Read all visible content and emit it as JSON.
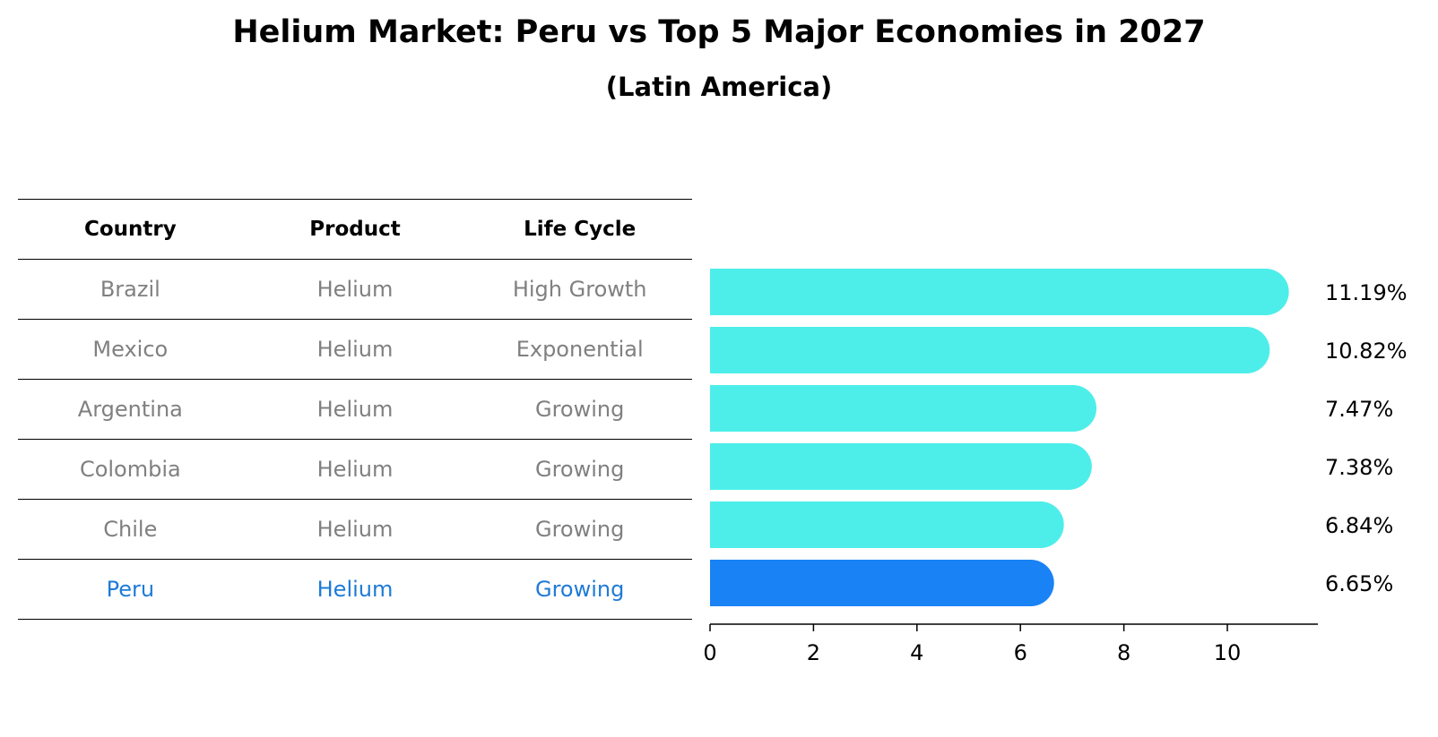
{
  "title": "Helium Market: Peru vs Top 5 Major Economies in 2027",
  "subtitle": "(Latin America)",
  "table": {
    "headers": [
      "Country",
      "Product",
      "Life Cycle"
    ],
    "rows": [
      {
        "country": "Brazil",
        "product": "Helium",
        "life_cycle": "High Growth"
      },
      {
        "country": "Mexico",
        "product": "Helium",
        "life_cycle": "Exponential"
      },
      {
        "country": "Argentina",
        "product": "Helium",
        "life_cycle": "Growing"
      },
      {
        "country": "Colombia",
        "product": "Helium",
        "life_cycle": "Growing"
      },
      {
        "country": "Chile",
        "product": "Helium",
        "life_cycle": "Growing"
      },
      {
        "country": "Peru",
        "product": "Helium",
        "life_cycle": "Growing"
      }
    ]
  },
  "colors": {
    "bar": "#4deeea",
    "highlight": "#1982f5",
    "highlight_text": "#1e7bd6",
    "muted_text": "#808080"
  },
  "chart_data": {
    "type": "bar",
    "orientation": "horizontal",
    "categories": [
      "Brazil",
      "Mexico",
      "Argentina",
      "Colombia",
      "Chile",
      "Peru"
    ],
    "values": [
      11.19,
      10.82,
      7.47,
      7.38,
      6.84,
      6.65
    ],
    "value_labels": [
      "11.19%",
      "10.82%",
      "7.47%",
      "7.38%",
      "6.84%",
      "6.65%"
    ],
    "highlight": "Peru",
    "xlim": [
      0,
      11.75
    ],
    "xticks": [
      0,
      2,
      4,
      6,
      8,
      10
    ],
    "xlabel": "",
    "ylabel": "",
    "grid": false
  }
}
